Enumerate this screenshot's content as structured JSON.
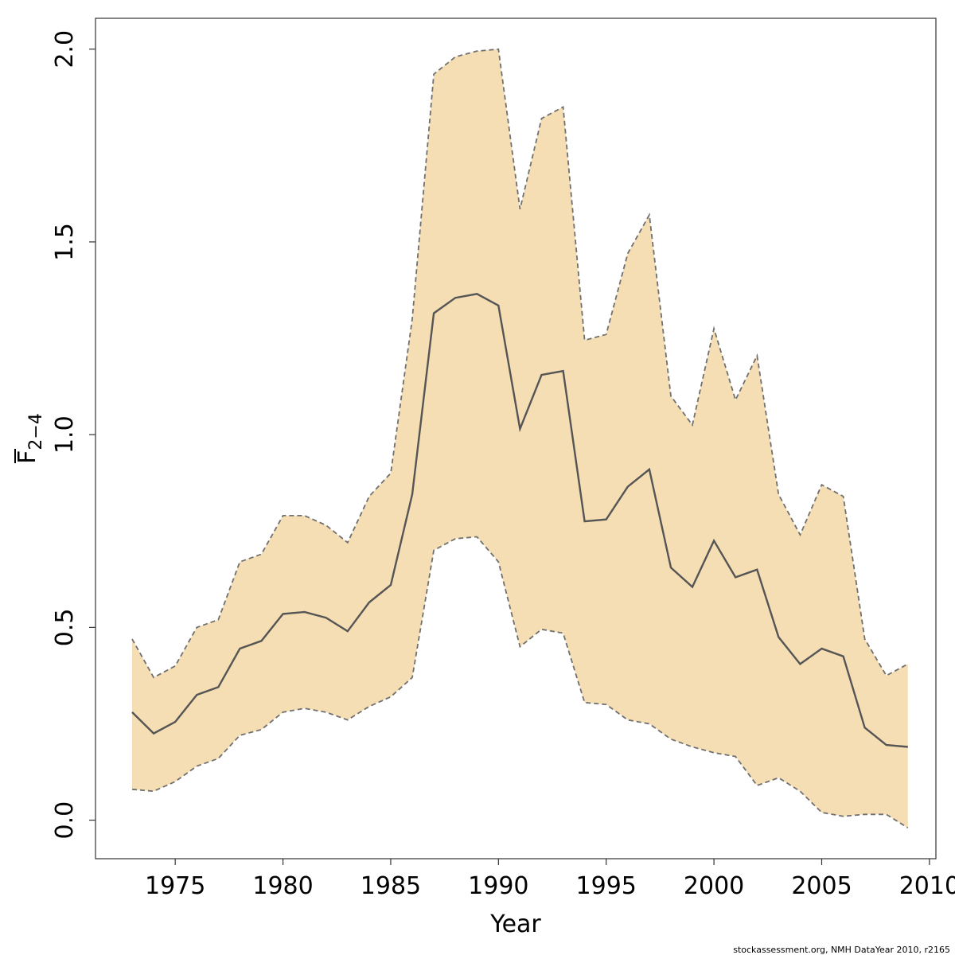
{
  "chart_data": {
    "type": "line",
    "xlabel": "Year",
    "ylabel": "F",
    "ylabel_subscript": "2−4",
    "xlim": [
      1971.3,
      2010.3
    ],
    "ylim": [
      -0.1,
      2.08
    ],
    "x_ticks": [
      1975,
      1980,
      1985,
      1990,
      1995,
      2000,
      2005,
      2010
    ],
    "x_tick_labels": [
      "1975",
      "1980",
      "1985",
      "1990",
      "1995",
      "2000",
      "2005",
      "2010"
    ],
    "y_ticks": [
      0.0,
      0.5,
      1.0,
      1.5,
      2.0
    ],
    "y_tick_labels": [
      "0.0",
      "0.5",
      "1.0",
      "1.5",
      "2.0"
    ],
    "grid": false,
    "legend": "none",
    "colors": {
      "band_fill": "#f5deb3",
      "estimate_line": "#555555",
      "bound_line": "#707070"
    },
    "x": [
      1973,
      1974,
      1975,
      1976,
      1977,
      1978,
      1979,
      1980,
      1981,
      1982,
      1983,
      1984,
      1985,
      1986,
      1987,
      1988,
      1989,
      1990,
      1991,
      1992,
      1993,
      1994,
      1995,
      1996,
      1997,
      1998,
      1999,
      2000,
      2001,
      2002,
      2003,
      2004,
      2005,
      2006,
      2007,
      2008,
      2009
    ],
    "series": [
      {
        "role": "estimate",
        "style": "solid",
        "values": [
          0.28,
          0.225,
          0.255,
          0.325,
          0.345,
          0.445,
          0.465,
          0.535,
          0.54,
          0.525,
          0.49,
          0.565,
          0.61,
          0.845,
          1.315,
          1.355,
          1.365,
          1.335,
          1.015,
          1.155,
          1.165,
          0.775,
          0.78,
          0.865,
          0.91,
          0.655,
          0.605,
          0.725,
          0.63,
          0.65,
          0.475,
          0.405,
          0.445,
          0.425,
          0.24,
          0.195,
          0.19
        ]
      },
      {
        "role": "upper",
        "style": "dashed",
        "values": [
          0.47,
          0.37,
          0.4,
          0.5,
          0.52,
          0.67,
          0.69,
          0.79,
          0.79,
          0.765,
          0.72,
          0.84,
          0.9,
          1.3,
          1.935,
          1.98,
          1.995,
          2.0,
          1.585,
          1.82,
          1.85,
          1.245,
          1.26,
          1.47,
          1.57,
          1.1,
          1.025,
          1.275,
          1.09,
          1.205,
          0.845,
          0.74,
          0.87,
          0.84,
          0.47,
          0.375,
          0.405
        ]
      },
      {
        "role": "lower",
        "style": "dashed",
        "values": [
          0.08,
          0.075,
          0.1,
          0.14,
          0.16,
          0.22,
          0.235,
          0.28,
          0.29,
          0.28,
          0.26,
          0.295,
          0.32,
          0.37,
          0.7,
          0.73,
          0.735,
          0.67,
          0.45,
          0.495,
          0.485,
          0.305,
          0.3,
          0.26,
          0.25,
          0.21,
          0.19,
          0.175,
          0.165,
          0.09,
          0.11,
          0.075,
          0.02,
          0.01,
          0.015,
          0.015,
          -0.02
        ]
      }
    ]
  },
  "credit": "stockassessment.org, NMH  DataYear  2010, r2165"
}
